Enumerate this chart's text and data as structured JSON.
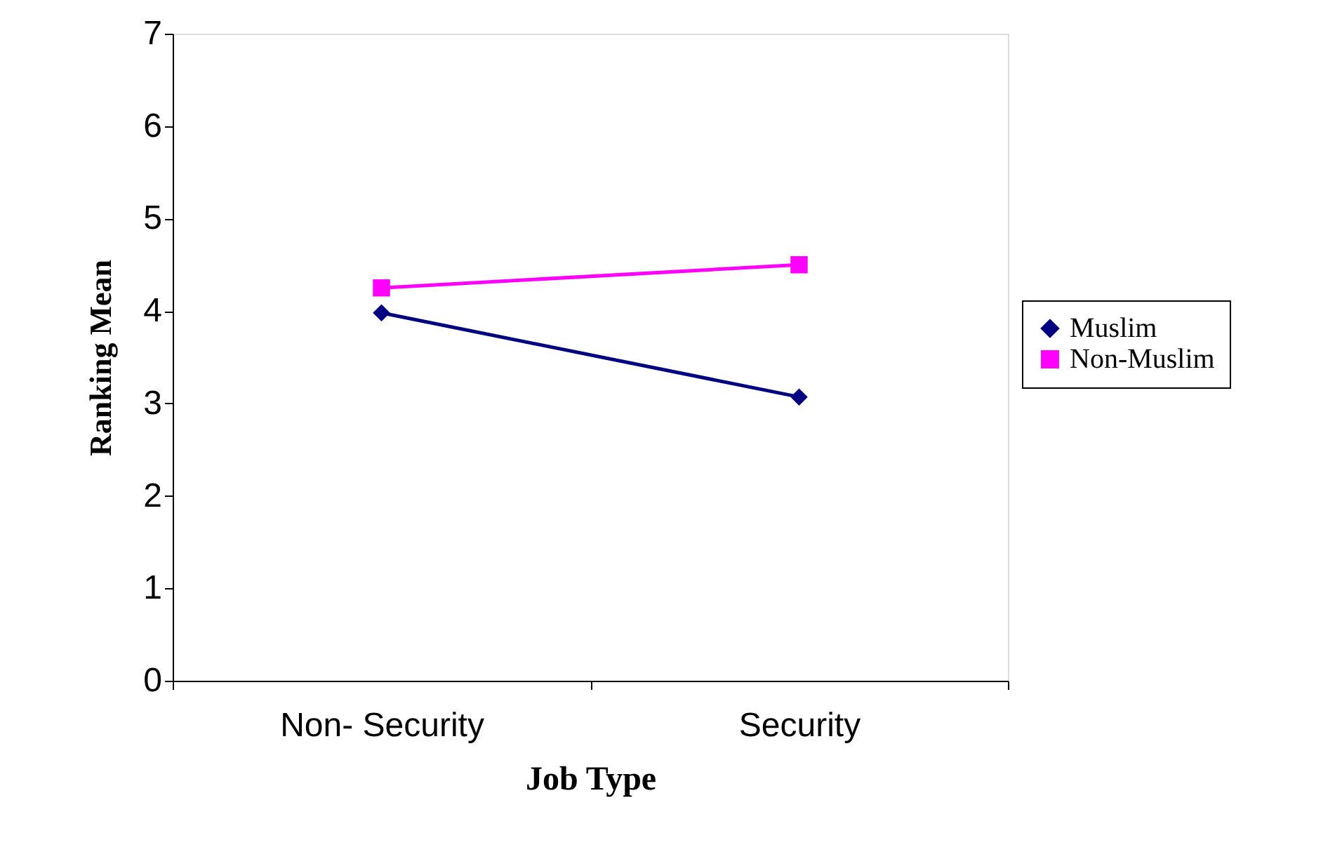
{
  "chart_data": {
    "type": "line",
    "xlabel": "Job Type",
    "ylabel": "Ranking Mean",
    "categories": [
      "Non- Security",
      "Security"
    ],
    "series": [
      {
        "name": "Muslim",
        "color": "#000080",
        "marker": "diamond",
        "values": [
          3.98,
          3.07
        ]
      },
      {
        "name": "Non-Muslim",
        "color": "#ff00ff",
        "marker": "square",
        "values": [
          4.25,
          4.5
        ]
      }
    ],
    "ylim": [
      0,
      7
    ],
    "yticks": [
      0,
      1,
      2,
      3,
      4,
      5,
      6,
      7
    ],
    "grid": false,
    "legend": "right"
  }
}
